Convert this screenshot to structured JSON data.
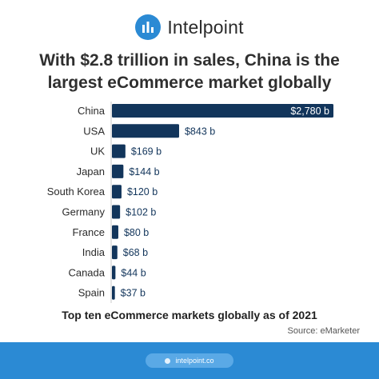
{
  "brand": {
    "name": "Intelpoint",
    "logo_icon": "bar-chart-icon"
  },
  "title": {
    "line1": "With $2.8 trillion in sales, China is the",
    "line2": "largest eCommerce market globally"
  },
  "caption": "Top ten eCommerce markets globally as of 2021",
  "source": "Source: eMarketer",
  "footer": {
    "url": "intelpoint.co"
  },
  "colors": {
    "bar": "#12355b",
    "label": "#2b2b2b",
    "value": "#12355b",
    "value_inside": "#ffffff",
    "footer_bg": "#2b8ad4",
    "pill_bg": "#5aa9e6",
    "logo_bg": "#2b8ad4",
    "axis": "#c8c8c8"
  },
  "chart_data": {
    "type": "bar",
    "orientation": "horizontal",
    "categories": [
      "China",
      "USA",
      "UK",
      "Japan",
      "South Korea",
      "Germany",
      "France",
      "India",
      "Canada",
      "Spain"
    ],
    "values": [
      2780,
      843,
      169,
      144,
      120,
      102,
      80,
      68,
      44,
      37
    ],
    "value_labels": [
      "$2,780 b",
      "$843 b",
      "$169 b",
      "$144 b",
      "$120 b",
      "$102 b",
      "$80 b",
      "$68 b",
      "$44 b",
      "$37 b"
    ],
    "xlim": [
      0,
      2780
    ]
  }
}
